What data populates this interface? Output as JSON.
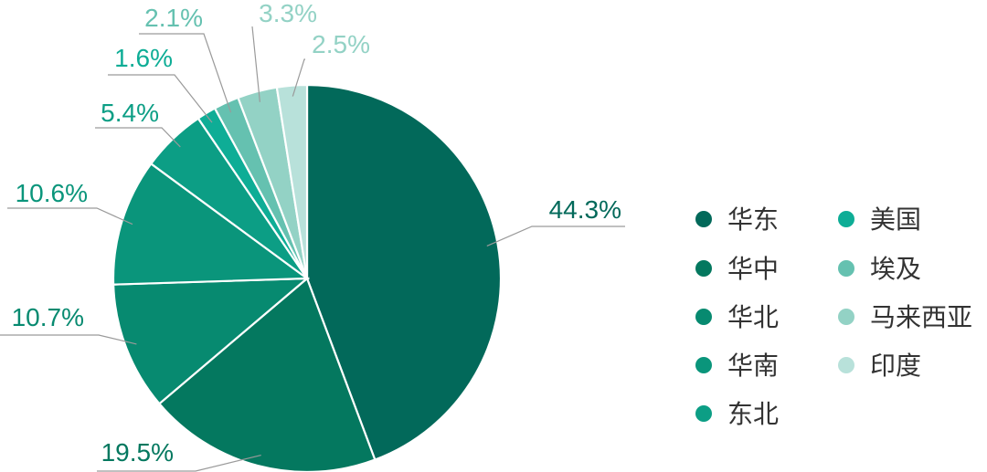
{
  "chart_data": {
    "type": "pie",
    "start_angle_deg": 0,
    "direction": "clockwise",
    "legend_position": "right",
    "slices": [
      {
        "label": "华东",
        "value": 44.3,
        "value_label": "44.3%",
        "color": "#02695A",
        "label_color": "#02695A"
      },
      {
        "label": "华中",
        "value": 19.5,
        "value_label": "19.5%",
        "color": "#04785F",
        "label_color": "#04785F"
      },
      {
        "label": "华北",
        "value": 10.7,
        "value_label": "10.7%",
        "color": "#078A70",
        "label_color": "#078A70"
      },
      {
        "label": "华南",
        "value": 10.6,
        "value_label": "10.6%",
        "color": "#0A957B",
        "label_color": "#0A957B"
      },
      {
        "label": "东北",
        "value": 5.4,
        "value_label": "5.4%",
        "color": "#0C9E85",
        "label_color": "#0C9E85"
      },
      {
        "label": "美国",
        "value": 1.6,
        "value_label": "1.6%",
        "color": "#0EAD96",
        "label_color": "#0EAD96"
      },
      {
        "label": "埃及",
        "value": 2.1,
        "value_label": "2.1%",
        "color": "#65C1B0",
        "label_color": "#65C1B0"
      },
      {
        "label": "马来西亚",
        "value": 3.3,
        "value_label": "3.3%",
        "color": "#93D2C5",
        "label_color": "#93D2C5"
      },
      {
        "label": "印度",
        "value": 2.5,
        "value_label": "2.5%",
        "color": "#B8E1DA",
        "label_color": "#93D2C5"
      }
    ]
  }
}
